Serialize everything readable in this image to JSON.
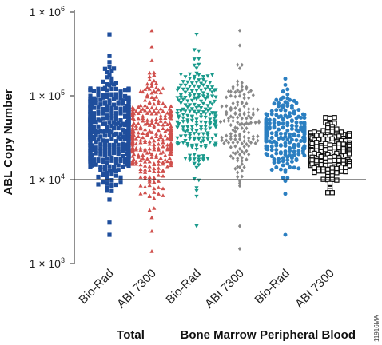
{
  "chart_data": {
    "type": "scatter",
    "title": "",
    "ylabel": "ABL Copy Number",
    "yscale": "log",
    "ylim": [
      1000,
      1000000
    ],
    "y_ticks": [
      {
        "value": 1000,
        "label": "1 × 10",
        "exp": "3"
      },
      {
        "value": 10000,
        "label": "1 × 10",
        "exp": "4"
      },
      {
        "value": 100000,
        "label": "1 × 10",
        "exp": "5"
      },
      {
        "value": 1000000,
        "label": "1 × 10",
        "exp": "6"
      }
    ],
    "reference_line": 10000,
    "categories": [
      "Bio-Rad",
      "ABI 7300",
      "Bio-Rad",
      "ABI 7300",
      "Bio-Rad",
      "ABI 7300"
    ],
    "groups": [
      {
        "label": "Total",
        "categories": [
          0,
          1
        ]
      },
      {
        "label": "Bone Marrow",
        "categories": [
          2,
          3
        ]
      },
      {
        "label": "Peripheral Blood",
        "categories": [
          4,
          5
        ]
      }
    ],
    "series": [
      {
        "category": 0,
        "marker": "square",
        "color": "#1f4e9c",
        "filled": true,
        "n": 420,
        "median": 40000,
        "min": 2200,
        "max": 540000,
        "spread": 0.32
      },
      {
        "category": 1,
        "marker": "triangle-up",
        "color": "#d0504d",
        "filled": true,
        "n": 330,
        "median": 32000,
        "min": 1400,
        "max": 600000,
        "spread": 0.33
      },
      {
        "category": 2,
        "marker": "triangle-down",
        "color": "#1a9a8c",
        "filled": true,
        "n": 220,
        "median": 55000,
        "min": 2800,
        "max": 540000,
        "spread": 0.33
      },
      {
        "category": 3,
        "marker": "diamond",
        "color": "#888888",
        "filled": true,
        "n": 150,
        "median": 45000,
        "min": 1500,
        "max": 600000,
        "spread": 0.3
      },
      {
        "category": 4,
        "marker": "circle",
        "color": "#2b7fc1",
        "filled": true,
        "n": 230,
        "median": 35000,
        "min": 2200,
        "max": 160000,
        "spread": 0.25
      },
      {
        "category": 5,
        "marker": "square-open",
        "color": "#111111",
        "filled": false,
        "n": 170,
        "median": 22000,
        "min": 7000,
        "max": 55000,
        "spread": 0.18
      }
    ]
  },
  "figure_id": "11916MA"
}
